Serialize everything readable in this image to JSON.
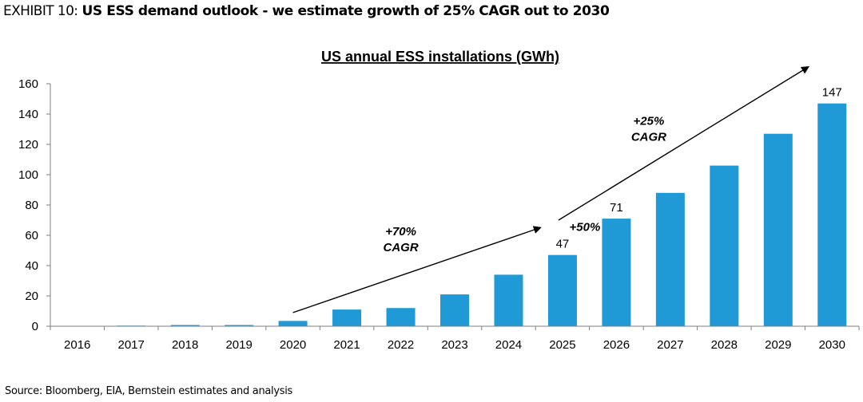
{
  "header": {
    "exhibit_label": "EXHIBIT 10:",
    "title": "US ESS demand outlook - we estimate growth of 25% CAGR out to 2030"
  },
  "source": "Source: Bloomberg, EIA, Bernstein estimates and analysis",
  "colors": {
    "bar": "#1f9ad6",
    "axis": "#7f7f7f",
    "text": "#000000"
  },
  "chart_data": {
    "type": "bar",
    "title": "US annual ESS installations (GWh)",
    "xlabel": "",
    "ylabel": "",
    "ylim": [
      0,
      160
    ],
    "yticks": [
      0,
      20,
      40,
      60,
      80,
      100,
      120,
      140,
      160
    ],
    "grid": false,
    "categories": [
      "2016",
      "2017",
      "2018",
      "2019",
      "2020",
      "2021",
      "2022",
      "2023",
      "2024",
      "2025",
      "2026",
      "2027",
      "2028",
      "2029",
      "2030"
    ],
    "values": [
      0.2,
      0.4,
      0.8,
      0.8,
      3.5,
      11,
      12,
      21,
      34,
      47,
      71,
      88,
      106,
      127,
      147
    ],
    "data_labels": [
      {
        "category": "2025",
        "text": "47"
      },
      {
        "category": "2026",
        "text": "71"
      },
      {
        "category": "2030",
        "text": "147"
      }
    ],
    "annotations": [
      {
        "id": "cagr-70",
        "lines": [
          "+70%",
          "CAGR"
        ],
        "span": [
          "2020",
          "2025"
        ]
      },
      {
        "id": "cagr-50",
        "lines": [
          "+50%"
        ],
        "span": [
          "2025",
          "2026"
        ]
      },
      {
        "id": "cagr-25",
        "lines": [
          "+25%",
          "CAGR"
        ],
        "span": [
          "2025",
          "2030"
        ]
      }
    ]
  }
}
